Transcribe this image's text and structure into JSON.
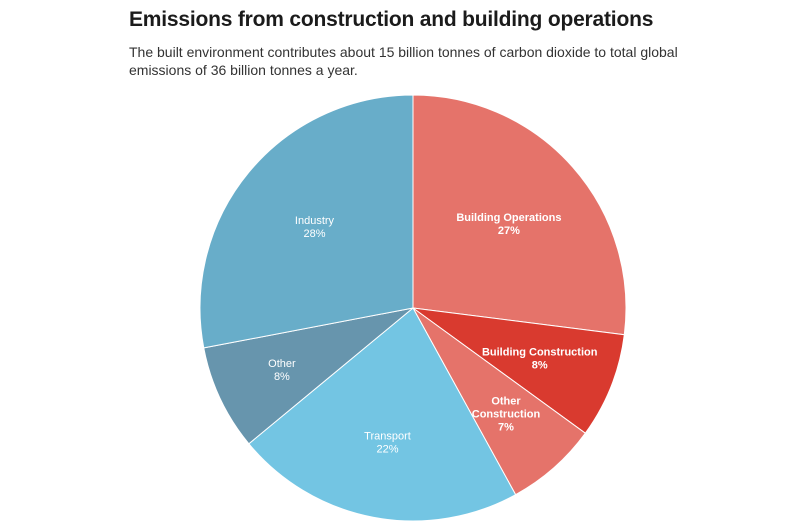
{
  "chart_data": {
    "type": "pie",
    "title": "Emissions from construction and building operations",
    "subtitle": "The built environment contributes about 15 billion tonnes of carbon dioxide to total global emissions of 36 billion tonnes a year.",
    "unit": "%",
    "start": "12 o'clock",
    "direction": "clockwise",
    "slices": [
      {
        "label": "Building Operations",
        "value": 27,
        "value_label": "27%",
        "color": "#e5736a",
        "label_lines": [
          "Building Operations",
          "27%"
        ],
        "bold": true
      },
      {
        "label": "Building Construction",
        "value": 8,
        "value_label": "8%",
        "color": "#d93a2f",
        "label_lines": [
          "Building Construction",
          "8%"
        ],
        "bold": true
      },
      {
        "label": "Other Construction",
        "value": 7,
        "value_label": "7%",
        "color": "#e5736a",
        "label_lines": [
          "Other",
          "Construction",
          "7%"
        ],
        "bold": true
      },
      {
        "label": "Transport",
        "value": 22,
        "value_label": "22%",
        "color": "#73c5e3",
        "label_lines": [
          "Transport",
          "22%"
        ],
        "bold": false
      },
      {
        "label": "Other",
        "value": 8,
        "value_label": "8%",
        "color": "#6795ad",
        "label_lines": [
          "Other",
          "8%"
        ],
        "bold": false
      },
      {
        "label": "Industry",
        "value": 28,
        "value_label": "28%",
        "color": "#68adc9",
        "label_lines": [
          "Industry",
          "28%"
        ],
        "bold": false
      }
    ]
  }
}
